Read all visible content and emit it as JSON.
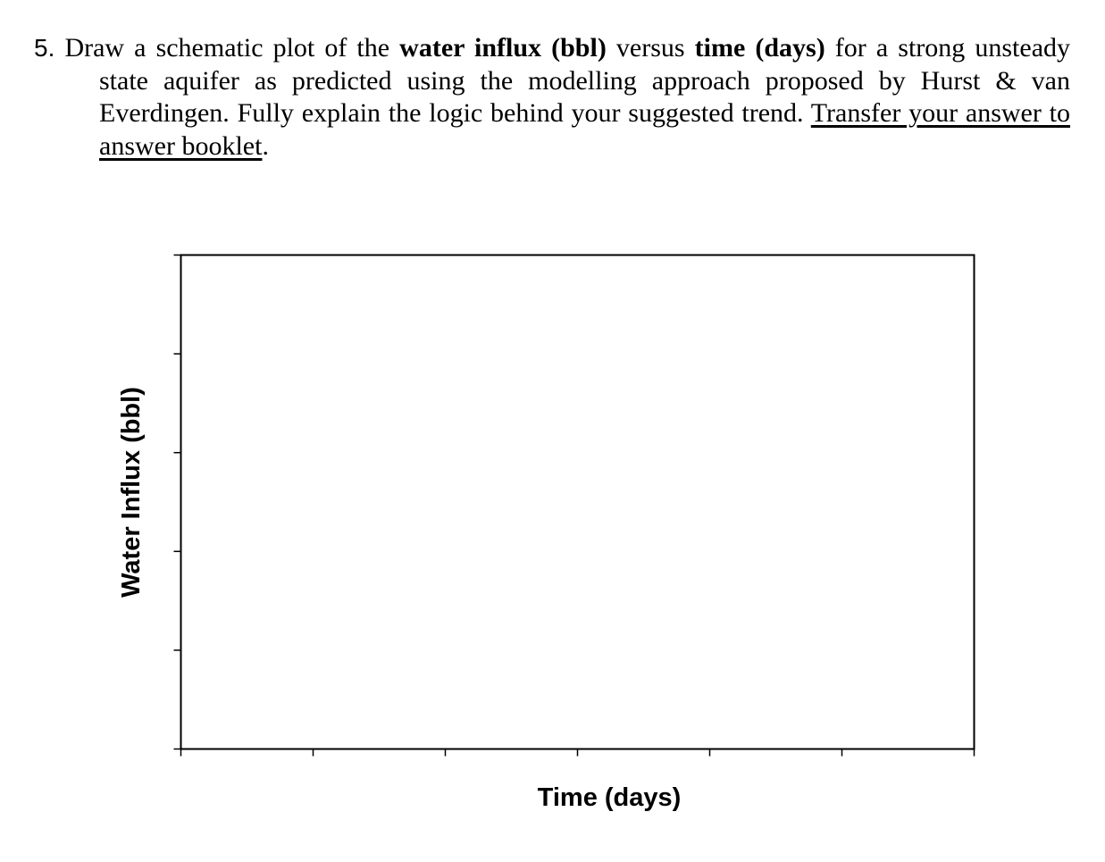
{
  "question": {
    "number": "5.",
    "parts": [
      {
        "text": " Draw a schematic plot of the ",
        "style": "normal"
      },
      {
        "text": "water influx (bbl)",
        "style": "bold"
      },
      {
        "text": " versus ",
        "style": "normal"
      },
      {
        "text": "time (days)",
        "style": "bold"
      },
      {
        "text": " for a strong unsteady state aquifer as predicted using the modelling approach proposed by Hurst & van Everdingen. Fully explain the logic behind your suggested trend. ",
        "style": "normal"
      },
      {
        "text": "Transfer your answer to answer booklet",
        "style": "underline"
      },
      {
        "text": ".",
        "style": "normal"
      }
    ]
  },
  "chart_data": {
    "type": "line",
    "xlabel": "Time (days)",
    "ylabel": "Water Influx (bbl)",
    "x_ticks": 7,
    "y_ticks": 6,
    "series": [],
    "grid": false
  }
}
